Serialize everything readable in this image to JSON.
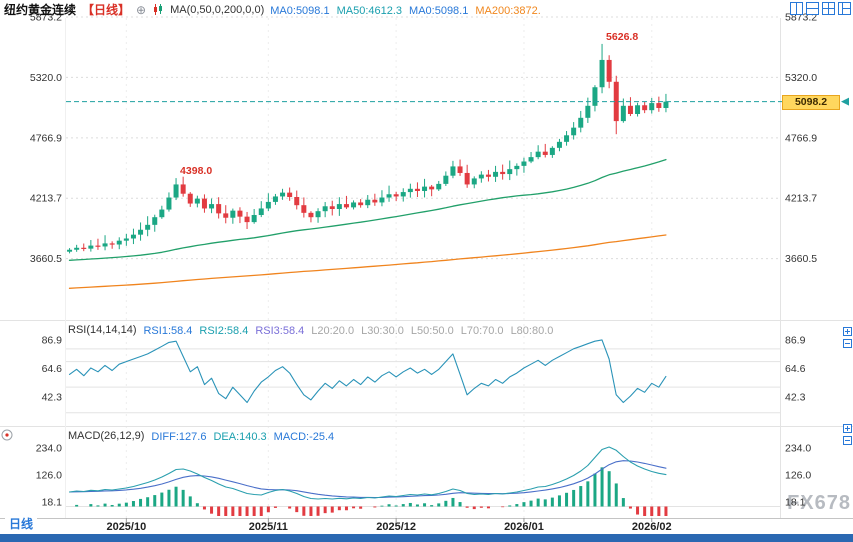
{
  "window": {
    "title": "纽约黄金连续",
    "period_tag": "【日线】"
  },
  "main_indicator": {
    "name": "MA(0,50,0,200,0,0)",
    "values": [
      {
        "text": "MA0:5098.1",
        "color": "#2878d8"
      },
      {
        "text": "MA50:4612.3",
        "color": "#1a9fae"
      },
      {
        "text": "MA0:5098.1",
        "color": "#2878d8"
      },
      {
        "text": "MA200:3872.",
        "color": "#f0871e"
      }
    ]
  },
  "rsi_indicator": {
    "name": "RSI(14,14,14)",
    "values": [
      {
        "text": "RSI1:58.4",
        "color": "#2878d8"
      },
      {
        "text": "RSI2:58.4",
        "color": "#1a9fae"
      },
      {
        "text": "RSI3:58.4",
        "color": "#7a6fd8"
      },
      {
        "text": "L20:20.0",
        "color": "#a6a6a6"
      },
      {
        "text": "L30:30.0",
        "color": "#a6a6a6"
      },
      {
        "text": "L50:50.0",
        "color": "#a6a6a6"
      },
      {
        "text": "L70:70.0",
        "color": "#a6a6a6"
      },
      {
        "text": "L80:80.0",
        "color": "#a6a6a6"
      }
    ]
  },
  "macd_indicator": {
    "name": "MACD(26,12,9)",
    "values": [
      {
        "text": "DIFF:127.6",
        "color": "#2878d8"
      },
      {
        "text": "DEA:140.3",
        "color": "#1a9fae"
      },
      {
        "text": "MACD:-25.4",
        "color": "#2878d8"
      }
    ]
  },
  "current_price_label": "5098.2",
  "bottom_tab": "日线",
  "watermark": "FX678",
  "icons": {
    "header": [
      "add-compare",
      "chart-style"
    ],
    "top_right": [
      "layout-single",
      "layout-split-horizontal",
      "layout-grid",
      "layout-split-custom"
    ],
    "panel_buttons": [
      "panel-zoom",
      "panel-close"
    ],
    "left_edge": [
      "crosshair-tool"
    ]
  },
  "chart_data": {
    "type": "candlestick+rsi+macd",
    "title": "纽约黄金连续 日线",
    "x_axis_labels": [
      "2025/10",
      "2025/11",
      "2025/12",
      "2026/01",
      "2026/02"
    ],
    "month_tick_indices": [
      8,
      28,
      46,
      64,
      82
    ],
    "price_axis_ticks": [
      5873.2,
      5320.0,
      4766.9,
      4213.7,
      3660.5
    ],
    "rsi_axis_ticks": [
      86.9,
      64.6,
      42.3
    ],
    "rsi_ref_levels": [
      20,
      30,
      50,
      70,
      80
    ],
    "macd_axis_ticks": [
      234.0,
      126.0,
      18.1
    ],
    "current_price": 5098.2,
    "closes": [
      3742,
      3760,
      3752,
      3780,
      3772,
      3800,
      3790,
      3825,
      3845,
      3880,
      3925,
      3970,
      4040,
      4110,
      4220,
      4340,
      4255,
      4165,
      4210,
      4120,
      4160,
      4075,
      4035,
      4100,
      4045,
      3995,
      4060,
      4120,
      4180,
      4230,
      4265,
      4225,
      4150,
      4080,
      4040,
      4095,
      4140,
      4115,
      4160,
      4130,
      4175,
      4150,
      4200,
      4175,
      4220,
      4250,
      4230,
      4270,
      4300,
      4280,
      4320,
      4295,
      4345,
      4420,
      4505,
      4445,
      4340,
      4395,
      4430,
      4410,
      4455,
      4435,
      4480,
      4510,
      4550,
      4590,
      4640,
      4610,
      4675,
      4730,
      4790,
      4860,
      4950,
      5060,
      5230,
      5480,
      5280,
      4920,
      5060,
      4985,
      5065,
      5020,
      5085,
      5040,
      5098.2
    ],
    "high_overrides": {
      "15": 4398.0,
      "75": 5626.8
    },
    "low_overrides": {
      "77": 4800
    },
    "annotations": [
      {
        "text": "4398.0",
        "index": 15,
        "price": 4398.0
      },
      {
        "text": "5626.8",
        "index": 75,
        "price": 5626.8
      }
    ],
    "ma_periods": [
      50,
      200
    ],
    "ma_seed": {
      "start": 3046,
      "end": 3725,
      "length": 200
    },
    "rsi": [
      60,
      64,
      59,
      65,
      62,
      67,
      63,
      68,
      70,
      72,
      74,
      76,
      79,
      82,
      85,
      86,
      74,
      62,
      66,
      52,
      57,
      45,
      41,
      50,
      44,
      38,
      47,
      54,
      58,
      63,
      66,
      61,
      52,
      44,
      40,
      47,
      53,
      49,
      55,
      51,
      56,
      52,
      58,
      54,
      59,
      62,
      58,
      62,
      65,
      61,
      64,
      60,
      64,
      70,
      76,
      60,
      44,
      49,
      53,
      51,
      56,
      53,
      58,
      61,
      65,
      68,
      71,
      67,
      71,
      74,
      77,
      80,
      82,
      84,
      86,
      87,
      72,
      44,
      38,
      43,
      49,
      46,
      53,
      50,
      58.4
    ],
    "macd_diff": [
      58,
      62,
      60,
      65,
      63,
      68,
      66,
      70,
      74,
      80,
      88,
      96,
      106,
      118,
      132,
      148,
      150,
      142,
      130,
      116,
      104,
      90,
      78,
      72,
      62,
      52,
      48,
      46,
      56,
      64,
      68,
      62,
      52,
      40,
      32,
      30,
      32,
      30,
      33,
      31,
      34,
      32,
      36,
      34,
      38,
      42,
      40,
      44,
      48,
      46,
      50,
      47,
      52,
      60,
      70,
      64,
      52,
      48,
      50,
      48,
      52,
      50,
      54,
      58,
      64,
      70,
      78,
      80,
      88,
      98,
      110,
      124,
      142,
      164,
      196,
      228,
      238,
      225,
      200,
      178,
      162,
      150,
      140,
      133,
      127.6
    ],
    "macd_dea_smoothing": 0.2,
    "colors": {
      "up": "#1ba784",
      "down": "#e23b41",
      "ma50": "#22a06a",
      "ma200": "#f0841e",
      "rsi_line": "#2a93b8",
      "macd_diff": "#2a9fae",
      "macd_dea": "#4a6fc9",
      "price_line": "#1fa0a0",
      "price_tag_bg": "#ffd75e",
      "annotation": "#d93026",
      "bottom_bar": "#2a68b2"
    }
  }
}
